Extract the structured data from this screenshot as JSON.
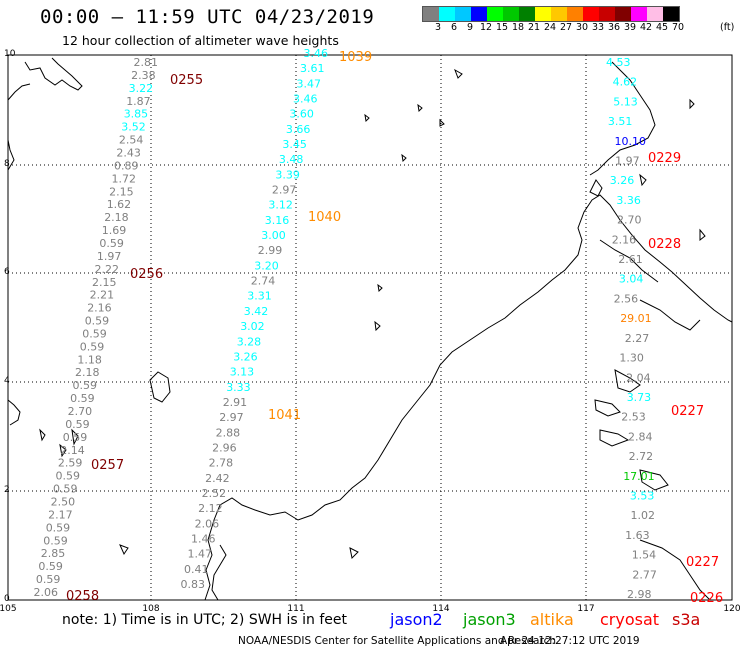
{
  "header": {
    "title": "00:00 – 11:59 UTC 04/23/2019",
    "subtitle": "12 hour collection of altimeter wave heights"
  },
  "legend": {
    "colors": [
      "#808080",
      "#00ffff",
      "#00c8ff",
      "#0000ff",
      "#00ff00",
      "#00c800",
      "#008000",
      "#ffff00",
      "#ffc800",
      "#ff8000",
      "#ff0000",
      "#c80000",
      "#800000",
      "#ff00ff",
      "#ffbee6",
      "#000000"
    ],
    "labels": [
      "3",
      "6",
      "9",
      "12",
      "15",
      "18",
      "21",
      "24",
      "27",
      "30",
      "33",
      "36",
      "39",
      "42",
      "45",
      "70"
    ],
    "unit": "(ft)"
  },
  "axes": {
    "x_ticks": [
      "105",
      "108",
      "111",
      "114",
      "117",
      "120"
    ],
    "y_ticks": [
      "0",
      "2",
      "4",
      "6",
      "8",
      "10"
    ]
  },
  "tracks": [
    {
      "values": [
        "2.81",
        "2.38",
        "3.22",
        "1.87",
        "3.85",
        "3.52",
        "2.54",
        "2.43",
        "0.89",
        "1.72",
        "2.15",
        "1.62",
        "2.18",
        "1.69",
        "0.59",
        "1.97",
        "2.22",
        "2.15",
        "2.21",
        "2.16",
        "0.59",
        "0.59",
        "0.59",
        "1.18",
        "2.18",
        "0.59",
        "0.59",
        "2.70",
        "0.59",
        "0.59",
        "2.14",
        "2.59",
        "0.59",
        "0.59",
        "2.50",
        "2.17",
        "0.59",
        "0.59",
        "2.85",
        "0.59",
        "0.59",
        "2.06"
      ]
    },
    {
      "values": [
        "3.46",
        "3.61",
        "3.47",
        "3.46",
        "3.60",
        "3.66",
        "3.45",
        "3.48",
        "3.39",
        "2.97",
        "3.12",
        "3.16",
        "3.00",
        "2.99",
        "3.20",
        "2.74",
        "3.31",
        "3.42",
        "3.02",
        "3.28",
        "3.26",
        "3.13",
        "3.33",
        "2.91",
        "2.97",
        "2.88",
        "2.96",
        "2.78",
        "2.42",
        "2.52",
        "2.12",
        "2.06",
        "1.46",
        "1.47",
        "0.41",
        "0.83"
      ]
    },
    {
      "values": [
        "4.53",
        "4.62",
        "5.13",
        "3.51",
        "10.10",
        "1.97",
        "3.26",
        "3.36",
        "2.70",
        "2.16",
        "2.61",
        "3.04",
        "2.56",
        "29.01",
        "2.27",
        "1.30",
        "2.04",
        "3.73",
        "2.53",
        "2.84",
        "2.72",
        "17.01",
        "3.53",
        "1.02",
        "1.63",
        "1.54",
        "2.77",
        "2.98"
      ]
    }
  ],
  "passes": [
    {
      "label": "1039"
    },
    {
      "label": "1040"
    },
    {
      "label": "1041"
    },
    {
      "label": "0255"
    },
    {
      "label": "0256"
    },
    {
      "label": "0257"
    },
    {
      "label": "0258"
    },
    {
      "label": "0229"
    },
    {
      "label": "0228"
    },
    {
      "label": "0227"
    },
    {
      "label": "0227"
    },
    {
      "label": "0226"
    }
  ],
  "footer": {
    "note": "note:  1) Time is in UTC;  2) SWH is in feet",
    "satellites": [
      {
        "name": "jason2",
        "color": "#0000ff"
      },
      {
        "name": "jason3",
        "color": "#00a000"
      },
      {
        "name": "altika",
        "color": "#ff8c00"
      },
      {
        "name": "cryosat",
        "color": "#ff0000"
      },
      {
        "name": "s3a",
        "color": "#c80000"
      }
    ],
    "credit": "NOAA/NESDIS Center for Satellite Applications and Research",
    "timestamp": "Apr 24 12:27:12 UTC 2019"
  }
}
